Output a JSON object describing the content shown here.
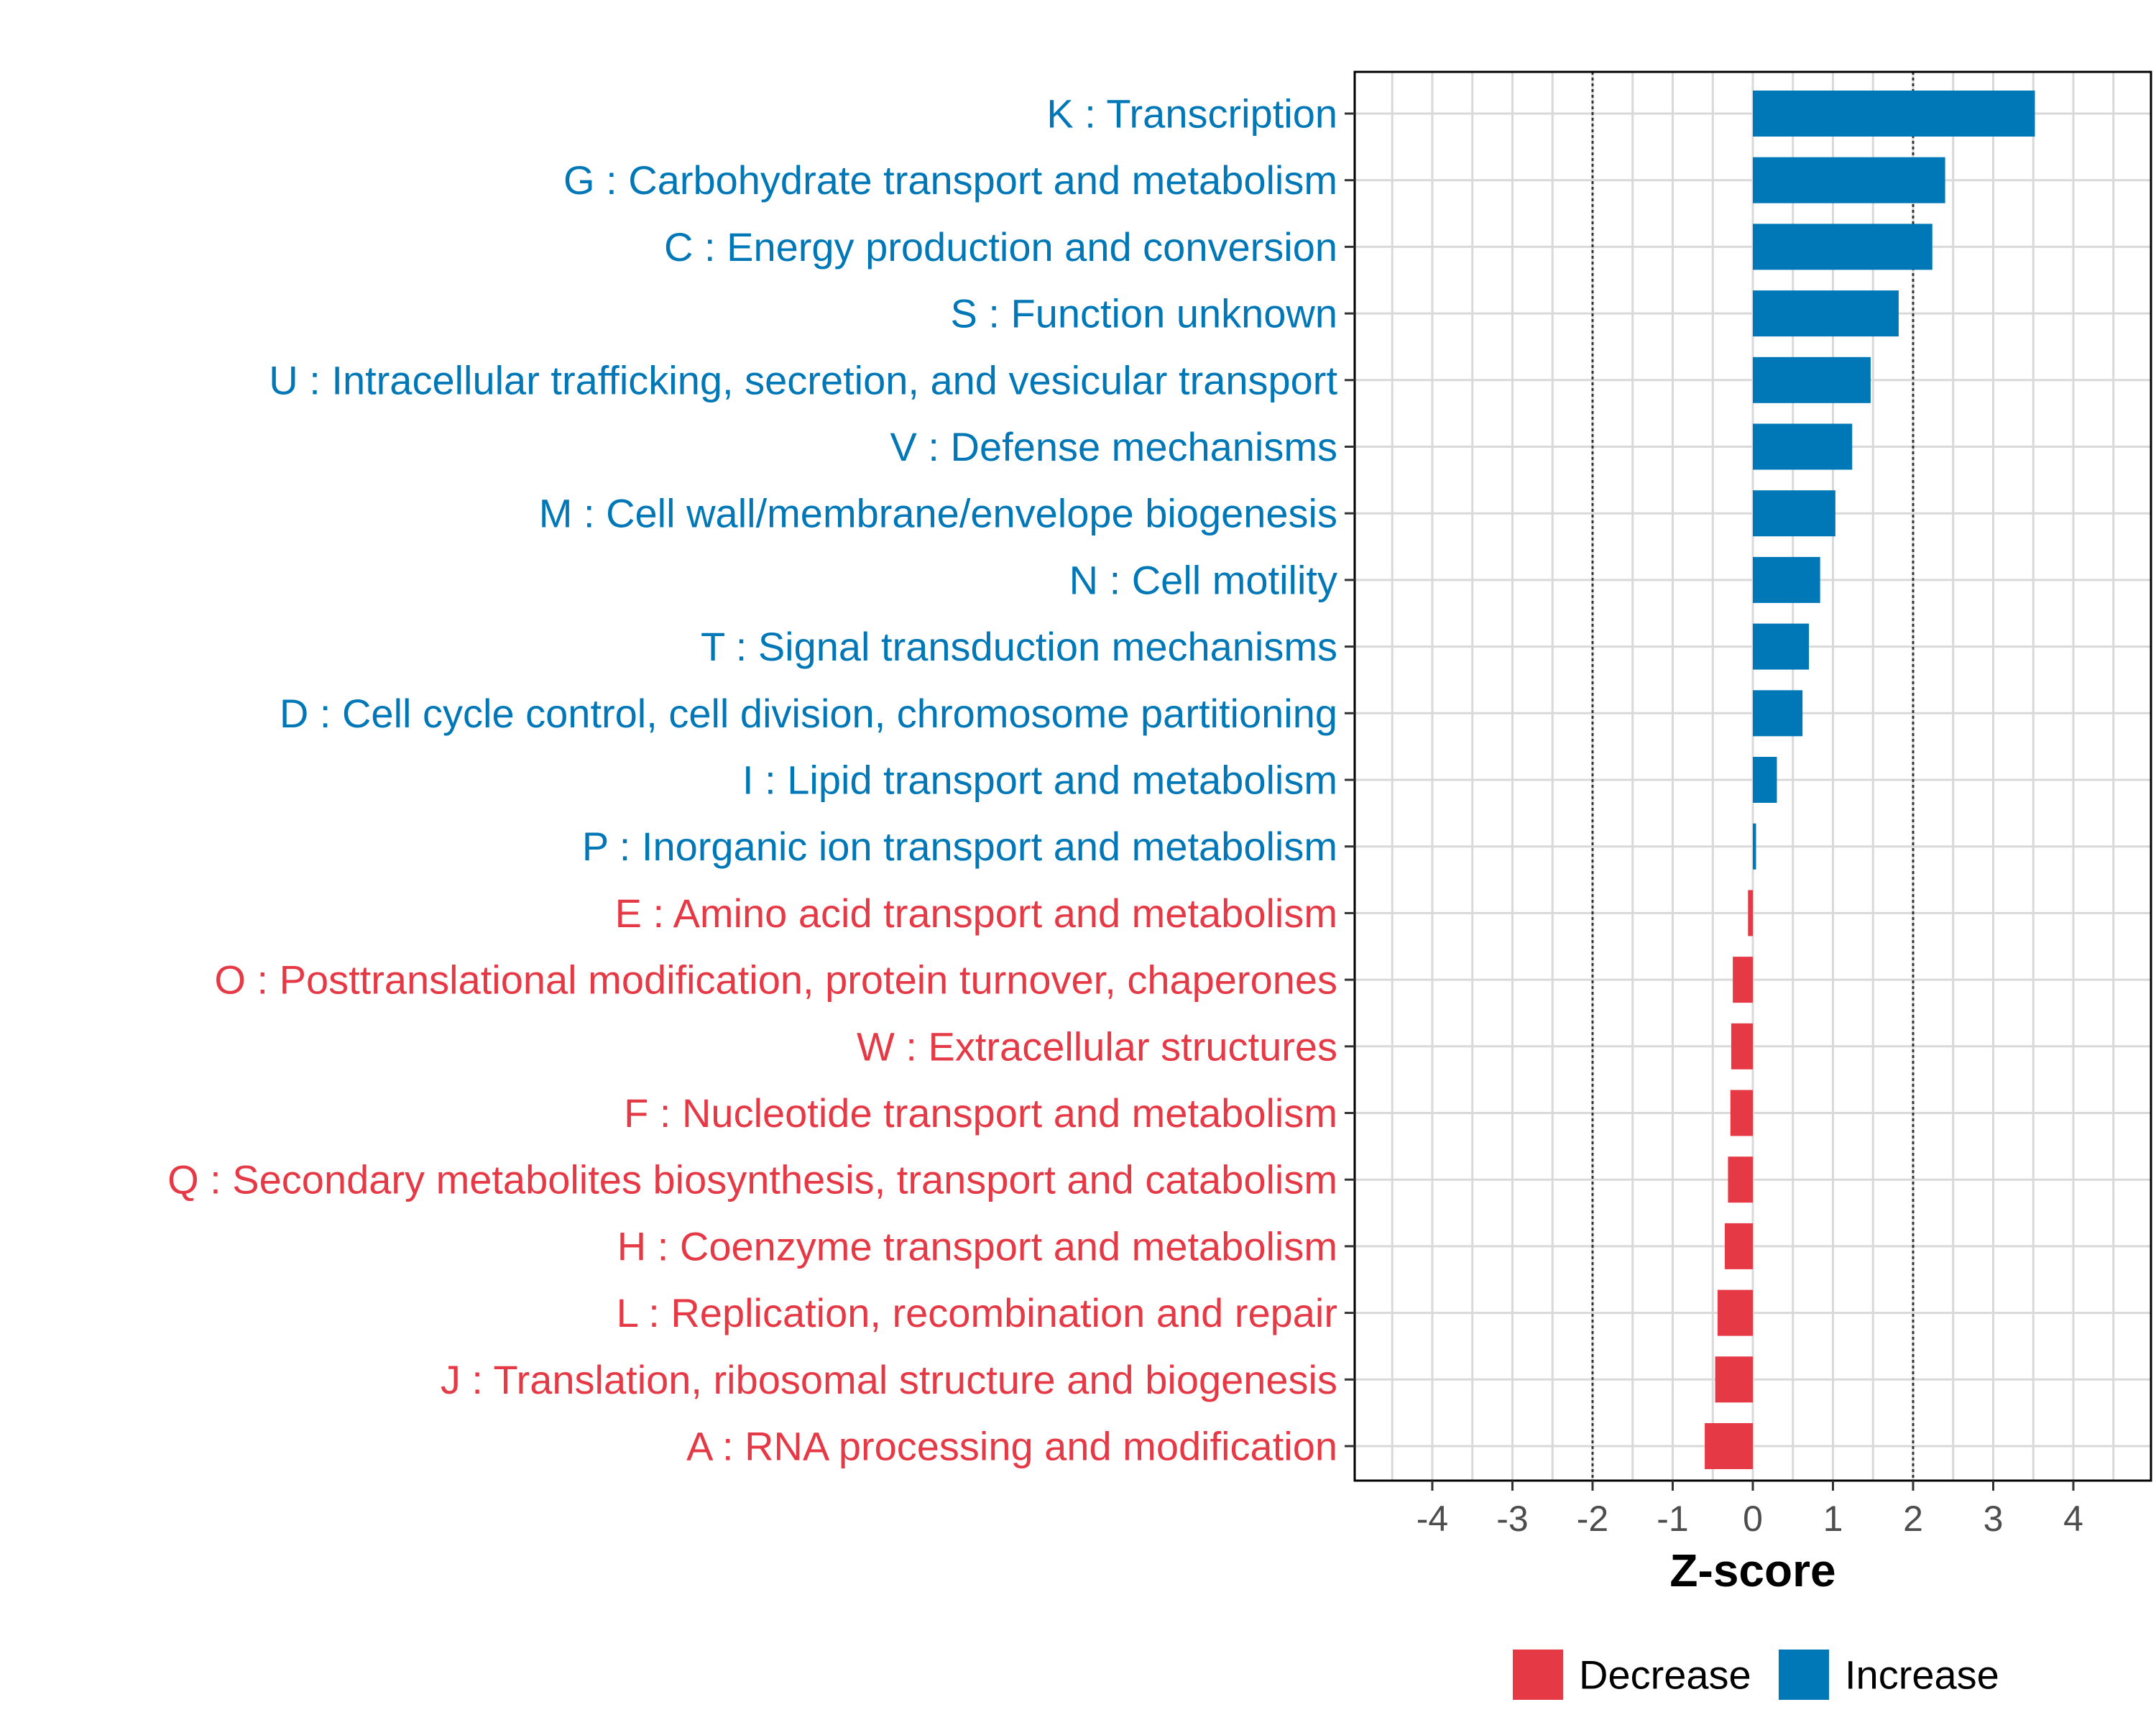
{
  "chart_data": {
    "type": "bar",
    "orientation": "horizontal",
    "title": "",
    "xlabel": "Z-score",
    "ylabel": "",
    "xlim": [
      -5,
      5
    ],
    "xticks": [
      -4,
      -3,
      -2,
      -1,
      0,
      1,
      2,
      3,
      4
    ],
    "xtick_labels": [
      "-4",
      "-3",
      "-2",
      "-1",
      "0",
      "1",
      "2",
      "3",
      "4"
    ],
    "reference_lines": [
      -2,
      2
    ],
    "grid": true,
    "legend_position": "bottom",
    "colors": {
      "Decrease": "#e63946",
      "Increase": "#0077b6"
    },
    "legend": [
      {
        "name": "Decrease",
        "color": "#e63946"
      },
      {
        "name": "Increase",
        "color": "#0077b6"
      }
    ],
    "categories": [
      "K : Transcription",
      "G : Carbohydrate transport and metabolism",
      "C : Energy production and conversion",
      "S : Function unknown",
      "U : Intracellular trafficking, secretion, and vesicular transport",
      "V : Defense mechanisms",
      "M : Cell wall/membrane/envelope biogenesis",
      "N : Cell motility",
      "T : Signal transduction mechanisms",
      "D : Cell cycle control, cell division, chromosome partitioning",
      "I : Lipid transport and metabolism",
      "P : Inorganic ion transport and metabolism",
      "E : Amino acid transport and metabolism",
      "O : Posttranslational modification, protein turnover, chaperones",
      "W : Extracellular structures",
      "F : Nucleotide transport and metabolism",
      "Q : Secondary metabolites biosynthesis, transport and catabolism",
      "H : Coenzyme transport and metabolism",
      "L : Replication, recombination and repair",
      "J : Translation, ribosomal structure and biogenesis",
      "A : RNA processing and modification"
    ],
    "values": [
      3.52,
      2.4,
      2.24,
      1.82,
      1.47,
      1.24,
      1.03,
      0.84,
      0.7,
      0.62,
      0.3,
      0.04,
      -0.06,
      -0.25,
      -0.27,
      -0.28,
      -0.31,
      -0.35,
      -0.44,
      -0.47,
      -0.6
    ],
    "groups": [
      "Increase",
      "Increase",
      "Increase",
      "Increase",
      "Increase",
      "Increase",
      "Increase",
      "Increase",
      "Increase",
      "Increase",
      "Increase",
      "Increase",
      "Decrease",
      "Decrease",
      "Decrease",
      "Decrease",
      "Decrease",
      "Decrease",
      "Decrease",
      "Decrease",
      "Decrease"
    ]
  }
}
